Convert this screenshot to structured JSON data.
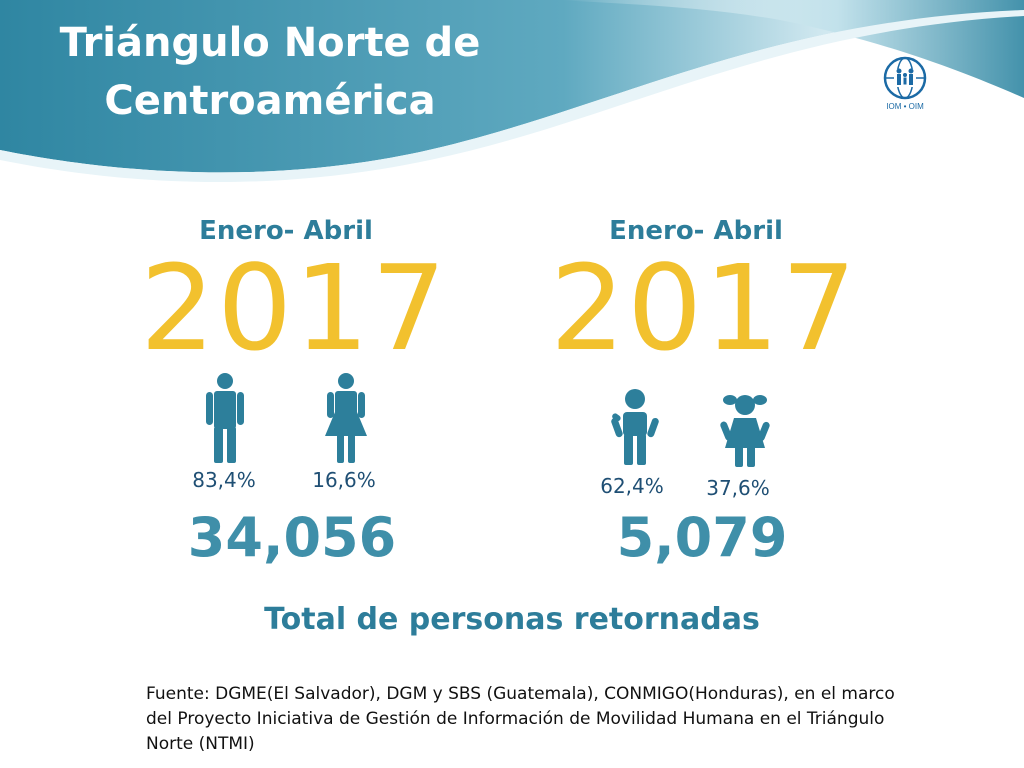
{
  "header": {
    "title_line1": "Triángulo Norte de",
    "title_line2": "Centroamérica",
    "logo_text": "IOM • OIM"
  },
  "left_panel": {
    "period": "Enero- Abril",
    "year": "2017",
    "groups": [
      {
        "icon": "man-icon",
        "percent": "83,4%"
      },
      {
        "icon": "woman-icon",
        "percent": "16,6%"
      }
    ],
    "total": "34,056"
  },
  "right_panel": {
    "period": "Enero- Abril",
    "year": "2017",
    "groups": [
      {
        "icon": "boy-icon",
        "percent": "62,4%"
      },
      {
        "icon": "girl-icon",
        "percent": "37,6%"
      }
    ],
    "total": "5,079"
  },
  "caption": "Total de personas retornadas",
  "source": "Fuente: DGME(El Salvador), DGM y SBS (Guatemala), CONMIGO(Honduras), en el marco del Proyecto Iniciativa de Gestión de Información de Movilidad Humana en el Triángulo Norte (NTMI)",
  "colors": {
    "header_dark": "#2f86a2",
    "header_light": "#a9d6e2",
    "year": "#f2c12e",
    "icon": "#2d7f9b",
    "percent": "#1f4f74",
    "total": "#3f8fa9"
  }
}
